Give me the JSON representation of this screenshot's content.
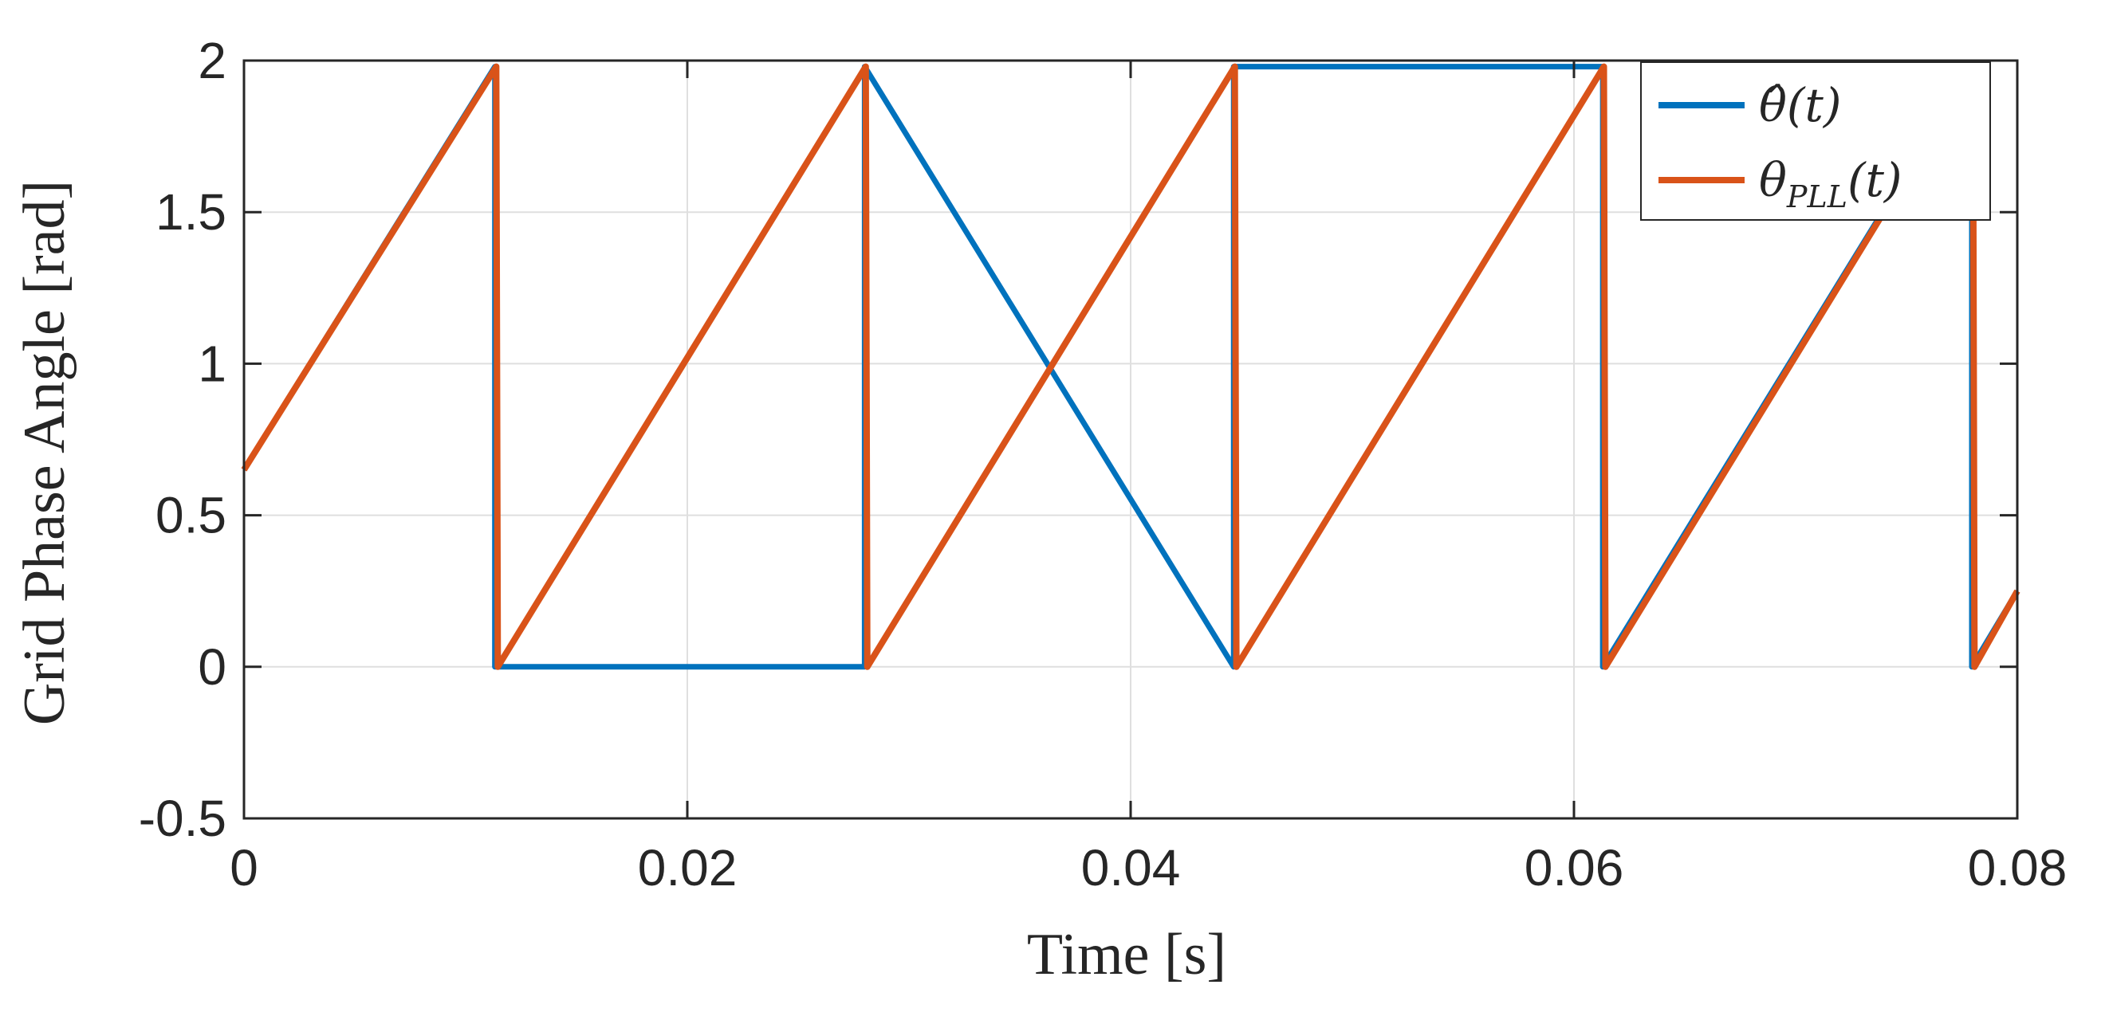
{
  "chart_data": {
    "type": "line",
    "xlabel": "Time [s]",
    "ylabel": "Grid Phase Angle [rad]",
    "xlim": [
      0,
      0.08
    ],
    "ylim": [
      -0.5,
      2
    ],
    "xticks": [
      0,
      0.02,
      0.04,
      0.06,
      0.08
    ],
    "xtick_labels": [
      "0",
      "0.02",
      "0.04",
      "0.06",
      "0.08"
    ],
    "yticks": [
      -0.5,
      0,
      0.5,
      1,
      1.5,
      2
    ],
    "ytick_labels": [
      "-0.5",
      "0",
      "0.5",
      "1",
      "1.5",
      "2"
    ],
    "grid": true,
    "legend_position": "top-right",
    "series": [
      {
        "name": "θ̂(t)",
        "legend_main": "θ̂",
        "legend_sub": "",
        "legend_suffix": "(t)",
        "color": "#0072BD",
        "x": [
          0,
          0.01132,
          0.01132,
          0.01132,
          0.028,
          0.028,
          0.028,
          0.04465,
          0.04465,
          0.04465,
          0.0613,
          0.0613,
          0.0613,
          0.07795,
          0.07795,
          0.07795,
          0.08
        ],
        "y": [
          0.65,
          1.98,
          1.98,
          0.0,
          0.0,
          1.98,
          1.98,
          0.0,
          0.0,
          1.98,
          1.98,
          0.0,
          0.0,
          1.98,
          1.98,
          0.0,
          0.25
        ]
      },
      {
        "name": "θPLL(t)",
        "legend_main": "θ",
        "legend_sub": "PLL",
        "legend_suffix": "(t)",
        "color": "#D95319",
        "x": [
          0,
          0.01138,
          0.01138,
          0.01145,
          0.02805,
          0.02805,
          0.02812,
          0.0447,
          0.0447,
          0.04477,
          0.06135,
          0.06135,
          0.06142,
          0.078,
          0.078,
          0.07807,
          0.08
        ],
        "y": [
          0.65,
          1.98,
          1.98,
          0.0,
          1.98,
          1.98,
          0.0,
          1.98,
          1.98,
          0.0,
          1.98,
          1.98,
          0.0,
          1.98,
          1.98,
          0.0,
          0.25
        ]
      }
    ]
  }
}
